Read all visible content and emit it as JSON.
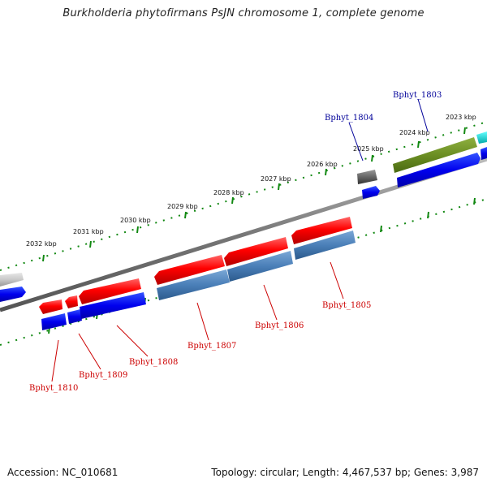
{
  "title": "Burkholderia phytofirmans PsJN chromosome 1, complete genome",
  "accession": "Accession: NC_010681",
  "stats": "Topology: circular; Length: 4,467,537 bp; Genes: 3,987",
  "colors": {
    "label_plus": "#000099",
    "label_minus": "#cc0000",
    "tick": "#118811"
  },
  "kbp_labels": [
    "2032 kbp",
    "2031 kbp",
    "2030 kbp",
    "2029 kbp",
    "2028 kbp",
    "2027 kbp",
    "2026 kbp",
    "2025 kbp",
    "2024 kbp",
    "2023 kbp"
  ],
  "gene_labels_plus": [
    "Bphyt_1804",
    "Bphyt_1803"
  ],
  "gene_labels_minus": [
    "Bphyt_1810",
    "Bphyt_1809",
    "Bphyt_1808",
    "Bphyt_1807",
    "Bphyt_1806",
    "Bphyt_1805"
  ]
}
